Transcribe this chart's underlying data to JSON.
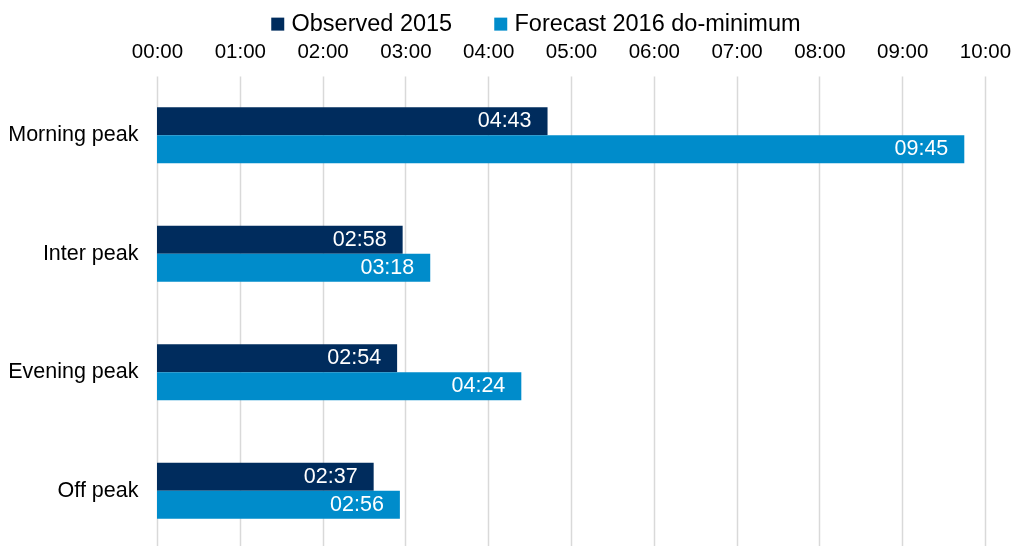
{
  "chart_data": {
    "type": "bar",
    "orientation": "horizontal",
    "categories": [
      "Morning peak",
      "Inter peak",
      "Evening peak",
      "Off peak"
    ],
    "series": [
      {
        "name": "Observed 2015",
        "color": "#002c5d",
        "values": [
          4.7167,
          2.9667,
          2.9,
          2.6167
        ],
        "value_labels": [
          "04:43",
          "02:58",
          "02:54",
          "02:37"
        ]
      },
      {
        "name": "Forecast 2016 do-minimum",
        "color": "#008ccb",
        "values": [
          9.75,
          3.3,
          4.4,
          2.9333
        ],
        "value_labels": [
          "09:45",
          "03:18",
          "04:24",
          "02:56"
        ]
      }
    ],
    "xlim": [
      0,
      10
    ],
    "xticks": [
      {
        "value": 0,
        "label": "00:00"
      },
      {
        "value": 1,
        "label": "01:00"
      },
      {
        "value": 2,
        "label": "02:00"
      },
      {
        "value": 3,
        "label": "03:00"
      },
      {
        "value": 4,
        "label": "04:00"
      },
      {
        "value": 5,
        "label": "05:00"
      },
      {
        "value": 6,
        "label": "06:00"
      },
      {
        "value": 7,
        "label": "07:00"
      },
      {
        "value": 8,
        "label": "08:00"
      },
      {
        "value": 9,
        "label": "09:00"
      },
      {
        "value": 10,
        "label": "10:00"
      }
    ],
    "grid": "x",
    "legend": "top"
  }
}
